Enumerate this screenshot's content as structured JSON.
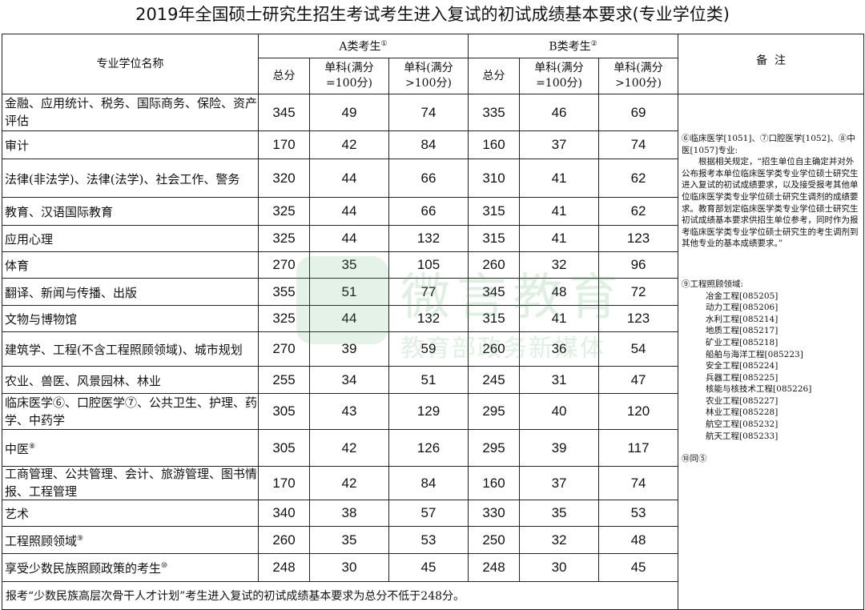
{
  "title": "2019年全国硕士研究生招生考试考生进入复试的初试成绩基本要求(专业学位类)",
  "header": {
    "name_col": "专业学位名称",
    "group_a": "A类考生",
    "group_a_mark": "①",
    "group_b": "B类考生",
    "group_b_mark": "②",
    "total": "总分",
    "single_100": "单科(满分=100分)",
    "single_gt100": "单科(满分>100分)",
    "remarks": "备  注"
  },
  "rows": [
    {
      "name": "金融、应用统计、税务、国际商务、保险、资产评估",
      "mark": "",
      "a": [
        "345",
        "49",
        "74"
      ],
      "b": [
        "335",
        "46",
        "69"
      ]
    },
    {
      "name": "审计",
      "mark": "",
      "a": [
        "170",
        "42",
        "84"
      ],
      "b": [
        "160",
        "37",
        "74"
      ]
    },
    {
      "name": "法律(非法学)、法律(法学)、社会工作、警务",
      "mark": "",
      "a": [
        "320",
        "44",
        "66"
      ],
      "b": [
        "310",
        "41",
        "62"
      ]
    },
    {
      "name": "教育、汉语国际教育",
      "mark": "",
      "a": [
        "325",
        "44",
        "66"
      ],
      "b": [
        "315",
        "41",
        "62"
      ]
    },
    {
      "name": "应用心理",
      "mark": "",
      "a": [
        "325",
        "44",
        "132"
      ],
      "b": [
        "315",
        "41",
        "123"
      ]
    },
    {
      "name": "体育",
      "mark": "",
      "a": [
        "270",
        "35",
        "105"
      ],
      "b": [
        "260",
        "32",
        "96"
      ]
    },
    {
      "name": "翻译、新闻与传播、出版",
      "mark": "",
      "a": [
        "355",
        "51",
        "77"
      ],
      "b": [
        "345",
        "48",
        "72"
      ]
    },
    {
      "name": "文物与博物馆",
      "mark": "",
      "a": [
        "325",
        "44",
        "132"
      ],
      "b": [
        "315",
        "41",
        "123"
      ]
    },
    {
      "name": "建筑学、工程(不含工程照顾领域)、城市规划",
      "mark": "",
      "a": [
        "270",
        "39",
        "59"
      ],
      "b": [
        "260",
        "36",
        "54"
      ]
    },
    {
      "name": "农业、兽医、风景园林、林业",
      "mark": "",
      "a": [
        "255",
        "34",
        "51"
      ],
      "b": [
        "245",
        "31",
        "47"
      ]
    },
    {
      "name": "临床医学⑥、口腔医学⑦、公共卫生、护理、药学、中药学",
      "mark": "",
      "a": [
        "305",
        "43",
        "129"
      ],
      "b": [
        "295",
        "40",
        "120"
      ]
    },
    {
      "name": "中医",
      "mark": "⑧",
      "a": [
        "305",
        "42",
        "126"
      ],
      "b": [
        "295",
        "39",
        "117"
      ]
    },
    {
      "name": "工商管理、公共管理、会计、旅游管理、图书情报、工程管理",
      "mark": "",
      "a": [
        "170",
        "42",
        "84"
      ],
      "b": [
        "160",
        "37",
        "74"
      ]
    },
    {
      "name": "艺术",
      "mark": "",
      "a": [
        "340",
        "38",
        "57"
      ],
      "b": [
        "330",
        "35",
        "53"
      ]
    },
    {
      "name": "工程照顾领域",
      "mark": "⑨",
      "a": [
        "260",
        "35",
        "53"
      ],
      "b": [
        "250",
        "32",
        "48"
      ]
    },
    {
      "name": "享受少数民族照顾政策的考生",
      "mark": "⑩",
      "a": [
        "248",
        "30",
        "45"
      ],
      "b": [
        "248",
        "30",
        "45"
      ]
    }
  ],
  "footer": "报考“少数民族高层次骨干人才计划”考生进入复试的初试成绩基本要求为总分不低于248分。",
  "remarks": {
    "medical_head": "⑥临床医学[1051]、⑦口腔医学[1052]、⑧中医[1057]专业:",
    "medical_body": "根据相关规定，“招生单位自主确定并对外公布报考本单位临床医学类专业学位硕士研究生进入复试的初试成绩要求，以及接受报考其他单位临床医学类专业学位硕士研究生调剂的成绩要求。教育部划定临床医学类专业学位硕士研究生初试成绩基本要求供招生单位参考，同时作为报考临床医学类专业学位硕士研究生的考生调剂到其他专业的基本成绩要求。”",
    "eng_head": "⑨工程照顾领域:",
    "eng_items": [
      "冶金工程[085205]",
      "动力工程[085206]",
      "水利工程[085214]",
      "地质工程[085217]",
      "矿业工程[085218]",
      "船舶与海洋工程[085223]",
      "安全工程[085224]",
      "兵器工程[085225]",
      "核能与核技术工程[085226]",
      "农业工程[085227]",
      "林业工程[085228]",
      "航空工程[085232]",
      "航天工程[085233]"
    ],
    "note10": "⑩同⑤"
  },
  "watermark": {
    "line1": "微言教育",
    "line2": "教育部政务新媒体",
    "color": "#50aa64"
  }
}
